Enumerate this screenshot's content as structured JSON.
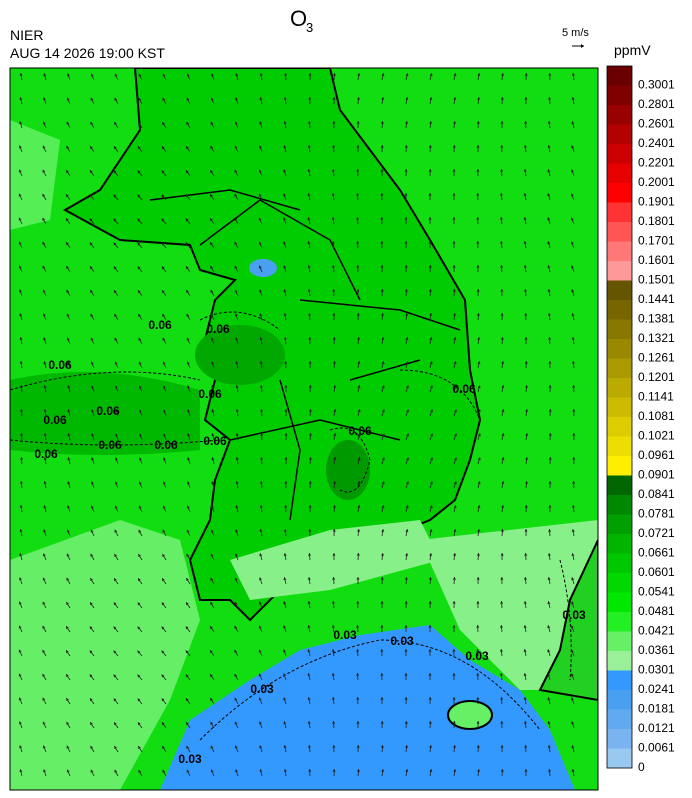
{
  "header": {
    "title": "O",
    "title_subscript": "3",
    "agency": "NIER",
    "timestamp": "AUG 14 2026 19:00 KST",
    "wind_scale": "5 m/s"
  },
  "legend": {
    "unit": "ppmV",
    "ticks": [
      0.3001,
      0.2801,
      0.2601,
      0.2401,
      0.2201,
      0.2001,
      0.1901,
      0.1801,
      0.1701,
      0.1601,
      0.1501,
      0.1441,
      0.1381,
      0.1321,
      0.1261,
      0.1201,
      0.1141,
      0.1081,
      0.1021,
      0.0961,
      0.0901,
      0.0841,
      0.0781,
      0.0721,
      0.0661,
      0.0601,
      0.0541,
      0.0481,
      0.0421,
      0.0361,
      0.0301,
      0.0241,
      0.0181,
      0.0121,
      0.0061,
      0
    ],
    "colors": [
      "#6b0000",
      "#800000",
      "#990000",
      "#b30000",
      "#cc0000",
      "#e60000",
      "#ff0000",
      "#ff3333",
      "#ff5555",
      "#ff7777",
      "#ff9999",
      "#665500",
      "#776600",
      "#887700",
      "#998800",
      "#aa9900",
      "#bbaa00",
      "#ccbb00",
      "#ddcc00",
      "#eedd00",
      "#ffee00",
      "#006600",
      "#008800",
      "#00a000",
      "#00b400",
      "#00c800",
      "#00d800",
      "#00e800",
      "#22f022",
      "#66f066",
      "#99f099",
      "#3399ff",
      "#4aa0f0",
      "#60aaf0",
      "#7ab4f0",
      "#99c8f0"
    ]
  },
  "contour_labels": [
    "0.06",
    "0.06",
    "0.06",
    "0.06",
    "0.06",
    "0.06",
    "0.06",
    "0.06",
    "0.06",
    "0.06",
    "0.06",
    "0.06",
    "0.03",
    "0.03",
    "0.03",
    "0.03",
    "0.03",
    "0.03"
  ]
}
